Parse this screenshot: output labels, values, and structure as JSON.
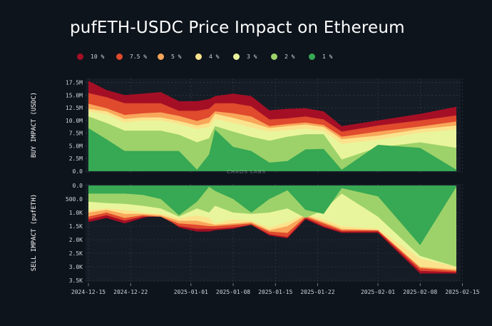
{
  "chart_data": {
    "type": "area",
    "title": "pufETH-USDC Price Impact on Ethereum",
    "watermark": "CHAOS LABS",
    "colors": {
      "10 %": "#a50f25",
      "7.5 %": "#e04a2d",
      "5 %": "#f9a65a",
      "4 %": "#fbe38d",
      "3 %": "#e9f59c",
      "2 %": "#9dd26a",
      "1 %": "#37a853"
    },
    "legend": [
      "10 %",
      "7.5 %",
      "5 %",
      "4 %",
      "3 %",
      "2 %",
      "1 %"
    ],
    "x_ticks": [
      "2024-12-15",
      "2024-12-22",
      "2025-01-01",
      "2025-01-08",
      "2025-01-15",
      "2025-01-22",
      "2025-02-01",
      "2025-02-08",
      "2025-02-15"
    ],
    "x_tick_days": [
      0,
      7,
      17,
      24,
      31,
      38,
      48,
      55,
      62
    ],
    "x_days": [
      0,
      3,
      6,
      9,
      12,
      15,
      18,
      20,
      21,
      24,
      27,
      30,
      33,
      36,
      39,
      42,
      48,
      55,
      61
    ],
    "buy": {
      "ylabel": "BUY IMPACT (USDC)",
      "ylim": [
        0,
        18
      ],
      "y_ticks": [
        "0.0",
        "2.5M",
        "5.0M",
        "7.5M",
        "10.0M",
        "12.5M",
        "15.0M",
        "17.5M"
      ],
      "y_tick_values": [
        0,
        2.5,
        5,
        7.5,
        10,
        12.5,
        15,
        17.5
      ],
      "series": [
        {
          "name": "1 %",
          "values": [
            8.5,
            6.3,
            4.0,
            4.0,
            4.0,
            4.0,
            0.3,
            3.3,
            8.2,
            4.8,
            4.0,
            1.7,
            2.0,
            4.3,
            4.4,
            0.3,
            5.2,
            4.6,
            0.3
          ]
        },
        {
          "name": "2 %",
          "values": [
            10.8,
            9.5,
            8.0,
            8.0,
            8.0,
            7.2,
            5.7,
            6.5,
            8.9,
            7.8,
            6.8,
            6.0,
            6.8,
            7.3,
            7.3,
            2.3,
            4.7,
            5.7,
            4.6
          ]
        },
        {
          "name": "3 %",
          "values": [
            11.8,
            11.2,
            9.6,
            10.0,
            10.0,
            9.3,
            8.3,
            8.7,
            10.3,
            9.5,
            8.6,
            7.8,
            8.1,
            8.4,
            7.9,
            5.4,
            6.2,
            7.6,
            8.2
          ]
        },
        {
          "name": "4 %",
          "values": [
            12.3,
            11.8,
            10.3,
            10.6,
            10.6,
            9.9,
            9.0,
            9.5,
            11.3,
            10.5,
            9.6,
            8.5,
            8.9,
            9.2,
            8.7,
            6.3,
            7.0,
            8.3,
            9.0
          ]
        },
        {
          "name": "5 %",
          "values": [
            13.3,
            12.4,
            11.1,
            11.4,
            11.6,
            10.9,
            9.9,
            10.6,
            11.8,
            11.4,
            10.8,
            8.9,
            9.3,
            9.6,
            9.1,
            6.8,
            7.8,
            8.8,
            9.8
          ]
        },
        {
          "name": "7.5 %",
          "values": [
            15.4,
            14.6,
            13.4,
            13.4,
            13.4,
            11.9,
            11.9,
            12.3,
            13.4,
            13.4,
            12.8,
            10.2,
            10.4,
            10.8,
            10.2,
            7.8,
            9.0,
            10.0,
            11.0
          ]
        },
        {
          "name": "10 %",
          "values": [
            17.8,
            16.0,
            15.0,
            15.3,
            15.6,
            13.8,
            13.8,
            14.2,
            14.8,
            15.3,
            14.8,
            12.0,
            12.3,
            12.4,
            11.8,
            8.9,
            10.0,
            11.3,
            12.7
          ]
        }
      ]
    },
    "sell": {
      "ylabel": "SELL IMPACT (pufETH)",
      "ylim": [
        0,
        3500
      ],
      "y_ticks": [
        "0.0",
        "500.0",
        "1.0K",
        "1.5K",
        "2.0K",
        "2.5K",
        "3.0K",
        "3.5K"
      ],
      "y_tick_values": [
        0,
        500,
        1000,
        1500,
        2000,
        2500,
        3000,
        3500
      ],
      "series": [
        {
          "name": "1 %",
          "values": [
            300,
            300,
            300,
            350,
            500,
            1100,
            600,
            50,
            200,
            500,
            1000,
            500,
            180,
            900,
            1050,
            100,
            400,
            2200,
            50
          ]
        },
        {
          "name": "2 %",
          "values": [
            600,
            650,
            680,
            750,
            850,
            1150,
            850,
            1000,
            750,
            1000,
            1050,
            1000,
            850,
            1200,
            900,
            300,
            1150,
            2600,
            3000
          ]
        },
        {
          "name": "3 %",
          "values": [
            900,
            850,
            900,
            1000,
            1050,
            1200,
            1100,
            1200,
            1400,
            1250,
            1300,
            1550,
            1350,
            1050,
            1250,
            1500,
            1600,
            2700,
            3000
          ]
        },
        {
          "name": "4 %",
          "values": [
            1000,
            900,
            1050,
            1050,
            1100,
            1300,
            1300,
            1400,
            1450,
            1400,
            1350,
            1650,
            1500,
            1100,
            1350,
            1600,
            1650,
            3000,
            3100
          ]
        },
        {
          "name": "5 %",
          "values": [
            1150,
            1000,
            1200,
            1100,
            1150,
            1400,
            1450,
            1500,
            1500,
            1450,
            1400,
            1700,
            1750,
            1150,
            1400,
            1650,
            1650,
            3050,
            3150
          ]
        },
        {
          "name": "7.5 %",
          "values": [
            1250,
            1100,
            1300,
            1150,
            1150,
            1500,
            1600,
            1600,
            1600,
            1550,
            1450,
            1800,
            1900,
            1200,
            1500,
            1700,
            1700,
            3150,
            3200
          ]
        },
        {
          "name": "10 %",
          "values": [
            1350,
            1200,
            1400,
            1200,
            1050,
            1550,
            1700,
            1700,
            1650,
            1600,
            1450,
            1850,
            1950,
            1250,
            1550,
            1750,
            1750,
            3250,
            3250
          ]
        }
      ]
    }
  }
}
